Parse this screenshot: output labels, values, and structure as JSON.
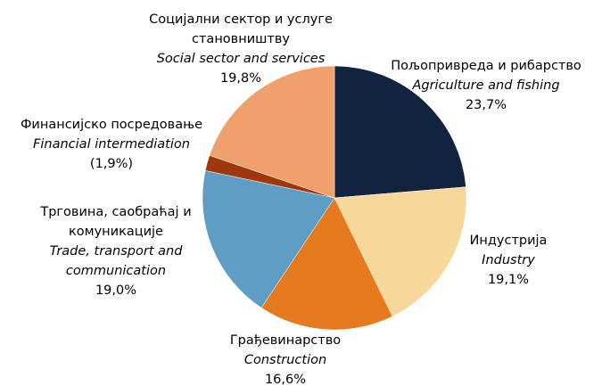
{
  "chart_data": {
    "type": "pie",
    "categories": [
      "Пољопривреда и рибарство",
      "Индустрија",
      "Грађевинарство",
      "Трговина, саобраћај и комуникације",
      "Финансијско посредовање",
      "Социјални сектор и услуге становништву"
    ],
    "categories_en": [
      "Agriculture and fishing",
      "Industry",
      "Construction",
      "Trade, transport and communication",
      "Financial intermediation",
      "Social sector and services"
    ],
    "values": [
      23.7,
      19.1,
      16.6,
      19.0,
      1.9,
      19.8
    ],
    "value_labels": [
      "23,7%",
      "19,1%",
      "16,6%",
      "19,0%",
      "(1,9%)",
      "19,8%"
    ],
    "colors": [
      "#12233f",
      "#f8d89a",
      "#e67a1e",
      "#5e9ec4",
      "#a0370c",
      "#f0a06c"
    ]
  }
}
